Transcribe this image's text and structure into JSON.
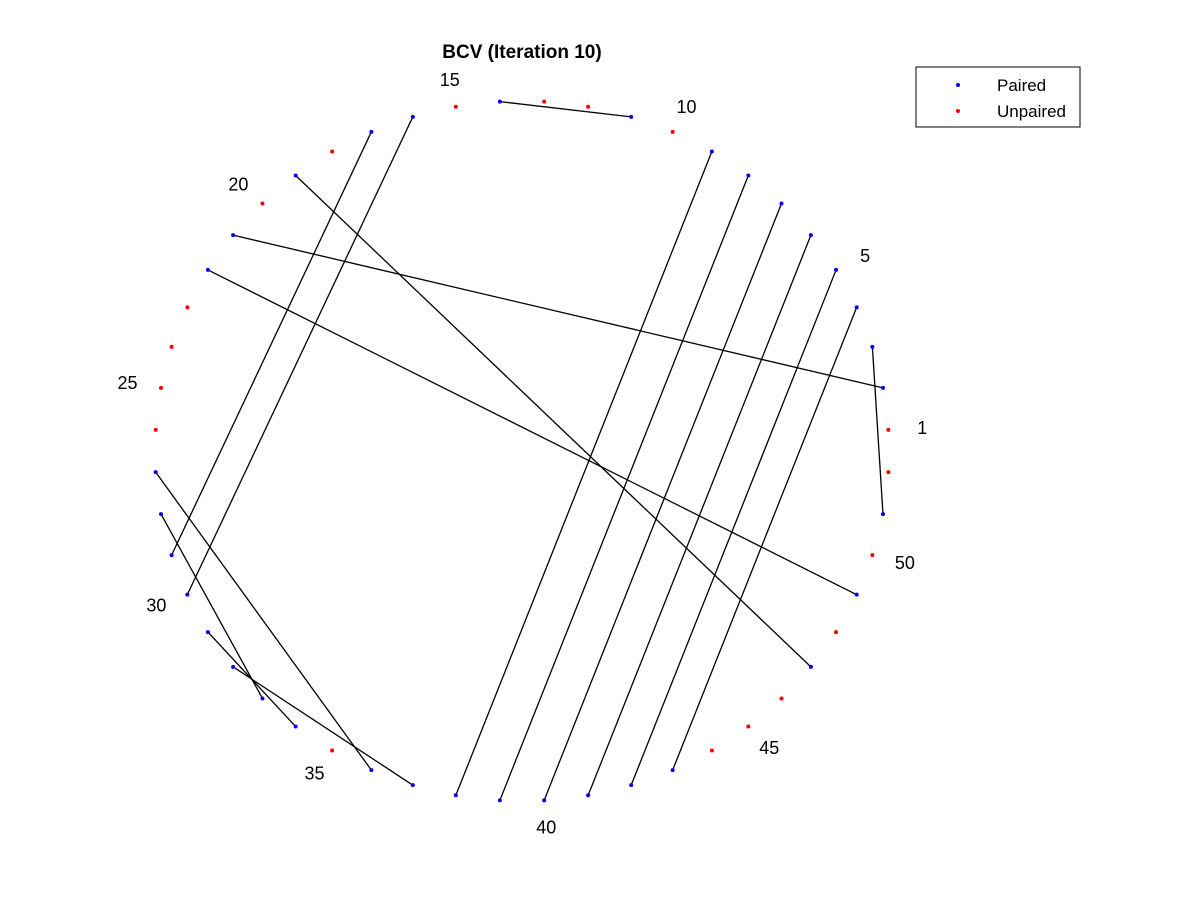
{
  "chart_data": {
    "type": "scatter",
    "title": "BCV (Iteration 10)",
    "n_points": 52,
    "point_labels": [
      "1",
      "5",
      "10",
      "15",
      "20",
      "25",
      "30",
      "35",
      "40",
      "45",
      "50"
    ],
    "label_positions": [
      1,
      5,
      10,
      15,
      20,
      25,
      30,
      35,
      40,
      45,
      50
    ],
    "series": [
      {
        "name": "Paired",
        "color": "#0000ff"
      },
      {
        "name": "Unpaired",
        "color": "#ff0000"
      }
    ],
    "pairs": [
      [
        2,
        21
      ],
      [
        3,
        51
      ],
      [
        4,
        43
      ],
      [
        5,
        42
      ],
      [
        6,
        41
      ],
      [
        7,
        40
      ],
      [
        8,
        39
      ],
      [
        9,
        38
      ],
      [
        11,
        14
      ],
      [
        16,
        30
      ],
      [
        17,
        29
      ],
      [
        19,
        47
      ],
      [
        22,
        49
      ],
      [
        27,
        36
      ],
      [
        28,
        33
      ],
      [
        31,
        34
      ],
      [
        32,
        37
      ]
    ],
    "grid": false,
    "legend_position": "top-right"
  }
}
